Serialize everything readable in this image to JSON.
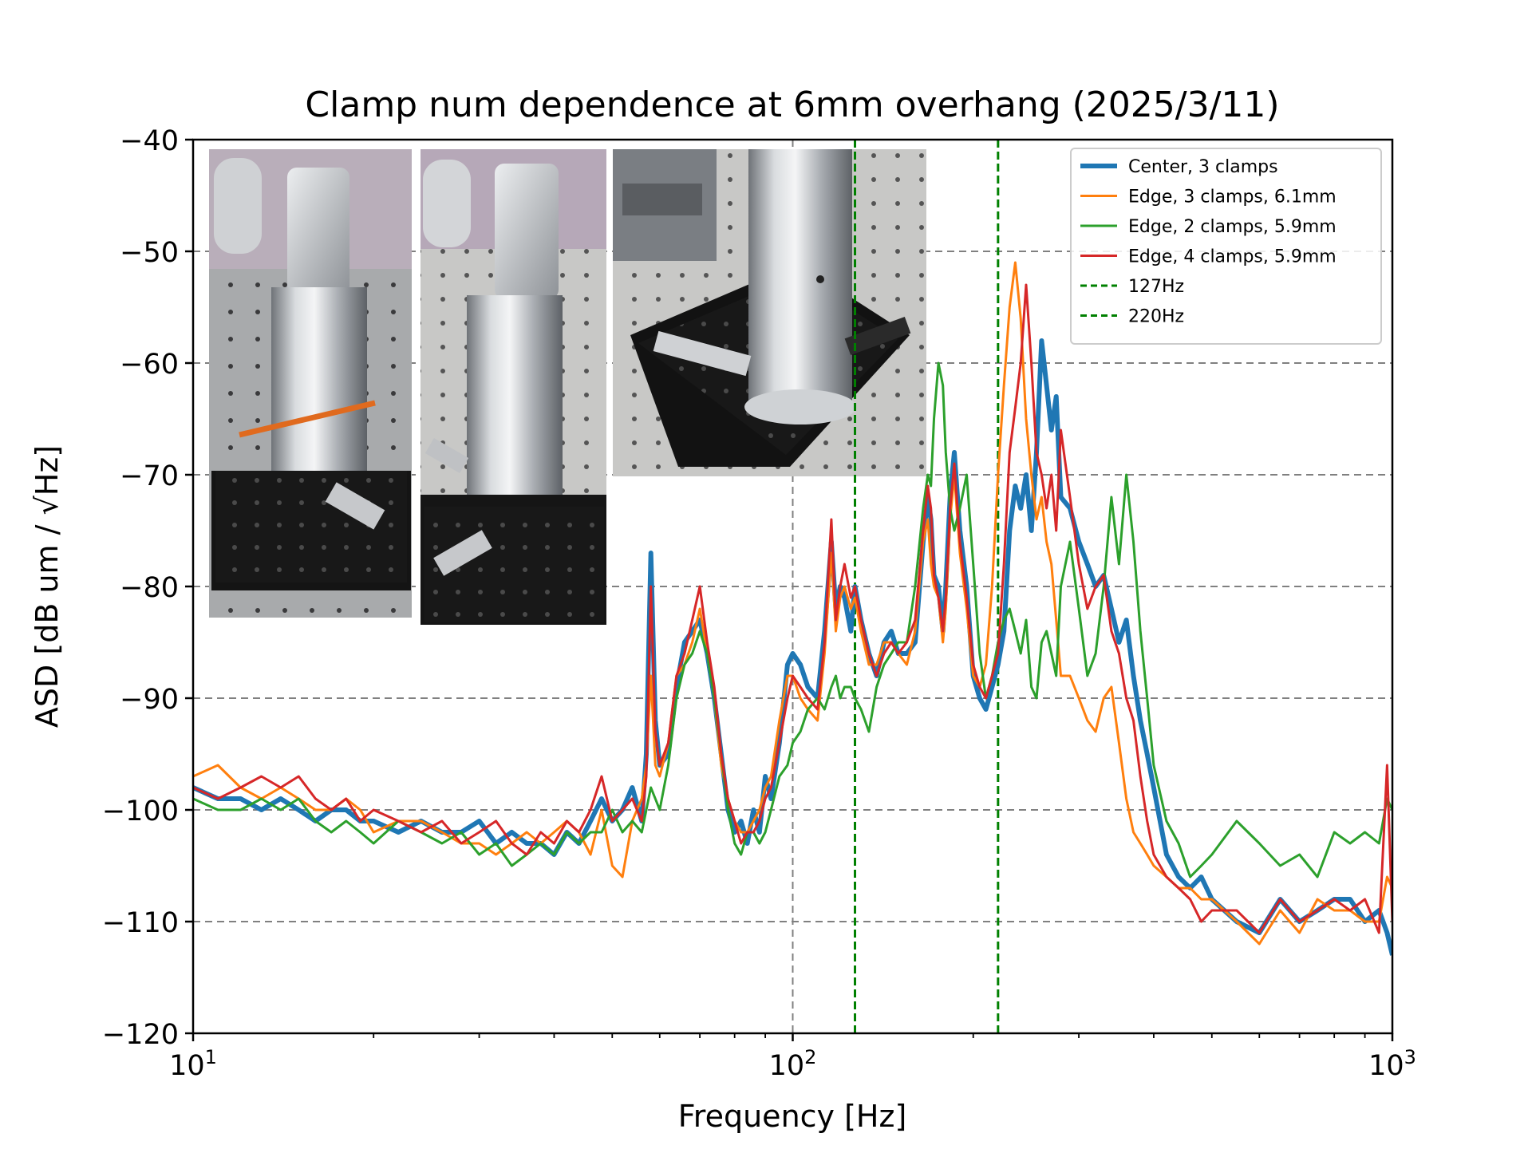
{
  "colors": {
    "center_3": "#1f77b4",
    "edge_3": "#ff7f0e",
    "edge_2": "#2ca02c",
    "edge_4": "#d62728",
    "vline": "#008000",
    "grid": "#808080"
  },
  "chart_data": {
    "type": "line",
    "title": "Clamp num dependence at 6mm overhang (2025/3/11)",
    "xlabel": "Frequency [Hz]",
    "ylabel": "ASD [dB um / √Hz]",
    "xscale": "log",
    "xlim": [
      10,
      1000
    ],
    "ylim": [
      -120,
      -40
    ],
    "xticks": [
      {
        "value": 10,
        "base": "10",
        "exp": "1"
      },
      {
        "value": 100,
        "base": "10",
        "exp": "2"
      },
      {
        "value": 1000,
        "base": "10",
        "exp": "3"
      }
    ],
    "yticks": [
      -40,
      -50,
      -60,
      -70,
      -80,
      -90,
      -100,
      -110,
      -120
    ],
    "ytick_labels": [
      "−40",
      "−50",
      "−60",
      "−70",
      "−80",
      "−90",
      "−100",
      "−110",
      "−120"
    ],
    "grid": "dashed, major ticks",
    "legend_position": "top-right",
    "vlines": [
      {
        "name": "127Hz",
        "x": 127,
        "style": "dashed"
      },
      {
        "name": "220Hz",
        "x": 220,
        "style": "dashed"
      }
    ],
    "inset_photos": 3,
    "series": [
      {
        "name": "Center, 3 clamps",
        "color_key": "center_3",
        "x": [
          10,
          11,
          12,
          13,
          14,
          15,
          16,
          17,
          18,
          19,
          20,
          22,
          24,
          26,
          28,
          30,
          32,
          34,
          36,
          38,
          40,
          42,
          44,
          46,
          48,
          50,
          52,
          54,
          56,
          57,
          58,
          59,
          60,
          62,
          64,
          66,
          68,
          70,
          72,
          74,
          76,
          78,
          80,
          82,
          84,
          86,
          88,
          90,
          92,
          95,
          98,
          100,
          103,
          106,
          110,
          113,
          116,
          118,
          120,
          122,
          125,
          127,
          130,
          134,
          138,
          142,
          146,
          150,
          155,
          160,
          165,
          168,
          170,
          172,
          175,
          178,
          180,
          183,
          186,
          190,
          195,
          200,
          205,
          210,
          215,
          220,
          225,
          230,
          235,
          240,
          245,
          250,
          255,
          260,
          265,
          270,
          275,
          280,
          290,
          300,
          310,
          320,
          330,
          340,
          350,
          360,
          370,
          380,
          390,
          400,
          420,
          440,
          460,
          480,
          500,
          550,
          600,
          650,
          700,
          750,
          800,
          850,
          900,
          950,
          980,
          1000
        ],
        "y": [
          -98,
          -99,
          -99,
          -100,
          -99,
          -100,
          -101,
          -100,
          -100,
          -101,
          -101,
          -102,
          -101,
          -102,
          -102,
          -101,
          -103,
          -102,
          -103,
          -103,
          -104,
          -102,
          -103,
          -101,
          -99,
          -101,
          -100,
          -98,
          -101,
          -95,
          -77,
          -92,
          -96,
          -95,
          -89,
          -85,
          -84,
          -83,
          -86,
          -90,
          -95,
          -100,
          -102,
          -101,
          -103,
          -100,
          -102,
          -97,
          -99,
          -94,
          -87,
          -86,
          -87,
          -89,
          -90,
          -84,
          -76,
          -82,
          -80,
          -81,
          -84,
          -80,
          -83,
          -86,
          -88,
          -85,
          -84,
          -86,
          -86,
          -85,
          -76,
          -72,
          -74,
          -79,
          -80,
          -84,
          -80,
          -72,
          -68,
          -75,
          -80,
          -88,
          -90,
          -91,
          -89,
          -87,
          -84,
          -75,
          -71,
          -73,
          -70,
          -75,
          -68,
          -58,
          -62,
          -66,
          -63,
          -72,
          -73,
          -76,
          -78,
          -80,
          -79,
          -82,
          -85,
          -83,
          -88,
          -92,
          -95,
          -98,
          -104,
          -106,
          -107,
          -106,
          -108,
          -110,
          -111,
          -108,
          -110,
          -109,
          -108,
          -108,
          -110,
          -109,
          -111,
          -113
        ]
      },
      {
        "name": "Edge, 3 clamps, 6.1mm",
        "color_key": "edge_3",
        "x": [
          10,
          11,
          12,
          13,
          14,
          15,
          16,
          17,
          18,
          19,
          20,
          22,
          24,
          26,
          28,
          30,
          32,
          34,
          36,
          38,
          40,
          42,
          44,
          46,
          48,
          50,
          52,
          54,
          56,
          57,
          58,
          59,
          60,
          62,
          64,
          66,
          68,
          70,
          72,
          74,
          76,
          78,
          80,
          82,
          84,
          86,
          88,
          90,
          92,
          95,
          98,
          100,
          103,
          106,
          110,
          113,
          116,
          118,
          120,
          122,
          125,
          127,
          130,
          134,
          138,
          142,
          146,
          150,
          155,
          160,
          165,
          168,
          170,
          172,
          175,
          178,
          180,
          183,
          186,
          190,
          195,
          200,
          205,
          210,
          215,
          220,
          225,
          230,
          235,
          240,
          245,
          250,
          255,
          260,
          265,
          270,
          275,
          280,
          290,
          300,
          310,
          320,
          330,
          340,
          350,
          360,
          370,
          380,
          390,
          400,
          420,
          440,
          460,
          480,
          500,
          550,
          600,
          650,
          700,
          750,
          800,
          850,
          900,
          950,
          980,
          1000
        ],
        "y": [
          -97,
          -96,
          -98,
          -99,
          -98,
          -99,
          -100,
          -100,
          -99,
          -100,
          -102,
          -101,
          -101,
          -102,
          -103,
          -103,
          -104,
          -103,
          -102,
          -103,
          -102,
          -101,
          -102,
          -104,
          -100,
          -105,
          -106,
          -101,
          -99,
          -96,
          -88,
          -96,
          -97,
          -94,
          -88,
          -87,
          -85,
          -82,
          -86,
          -90,
          -96,
          -99,
          -101,
          -102,
          -102,
          -101,
          -100,
          -98,
          -97,
          -92,
          -88,
          -88,
          -90,
          -91,
          -92,
          -86,
          -77,
          -84,
          -81,
          -80,
          -82,
          -81,
          -84,
          -87,
          -87,
          -85,
          -85,
          -86,
          -87,
          -84,
          -76,
          -74,
          -78,
          -80,
          -81,
          -85,
          -82,
          -74,
          -70,
          -77,
          -82,
          -88,
          -89,
          -87,
          -80,
          -70,
          -62,
          -55,
          -51,
          -56,
          -65,
          -70,
          -74,
          -72,
          -76,
          -78,
          -83,
          -88,
          -88,
          -90,
          -92,
          -93,
          -90,
          -89,
          -94,
          -99,
          -102,
          -103,
          -104,
          -105,
          -106,
          -107,
          -107,
          -108,
          -108,
          -110,
          -112,
          -109,
          -111,
          -108,
          -109,
          -109,
          -110,
          -110,
          -106,
          -107
        ]
      },
      {
        "name": "Edge, 2 clamps, 5.9mm",
        "color_key": "edge_2",
        "x": [
          10,
          11,
          12,
          13,
          14,
          15,
          16,
          17,
          18,
          19,
          20,
          22,
          24,
          26,
          28,
          30,
          32,
          34,
          36,
          38,
          40,
          42,
          44,
          46,
          48,
          50,
          52,
          54,
          56,
          57,
          58,
          59,
          60,
          62,
          64,
          66,
          68,
          70,
          72,
          74,
          76,
          78,
          80,
          82,
          84,
          86,
          88,
          90,
          92,
          95,
          98,
          100,
          103,
          106,
          110,
          113,
          116,
          118,
          120,
          122,
          125,
          127,
          130,
          134,
          138,
          142,
          146,
          150,
          155,
          160,
          165,
          168,
          170,
          172,
          175,
          178,
          180,
          183,
          186,
          190,
          195,
          200,
          205,
          210,
          215,
          220,
          225,
          230,
          235,
          240,
          245,
          250,
          255,
          260,
          265,
          270,
          275,
          280,
          290,
          300,
          310,
          320,
          330,
          340,
          350,
          360,
          370,
          380,
          390,
          400,
          420,
          440,
          460,
          480,
          500,
          550,
          600,
          650,
          700,
          750,
          800,
          850,
          900,
          950,
          980,
          1000
        ],
        "y": [
          -99,
          -100,
          -100,
          -99,
          -100,
          -99,
          -101,
          -102,
          -101,
          -102,
          -103,
          -101,
          -102,
          -103,
          -102,
          -104,
          -103,
          -105,
          -104,
          -103,
          -104,
          -102,
          -103,
          -102,
          -102,
          -100,
          -102,
          -101,
          -102,
          -100,
          -98,
          -99,
          -100,
          -96,
          -90,
          -87,
          -86,
          -84,
          -86,
          -90,
          -95,
          -100,
          -103,
          -104,
          -102,
          -102,
          -103,
          -102,
          -100,
          -97,
          -96,
          -94,
          -93,
          -91,
          -90,
          -91,
          -89,
          -88,
          -90,
          -89,
          -89,
          -90,
          -91,
          -93,
          -89,
          -87,
          -86,
          -85,
          -85,
          -80,
          -73,
          -70,
          -71,
          -65,
          -60,
          -62,
          -68,
          -73,
          -75,
          -73,
          -70,
          -78,
          -86,
          -90,
          -88,
          -85,
          -83,
          -82,
          -84,
          -86,
          -83,
          -89,
          -90,
          -85,
          -84,
          -86,
          -88,
          -80,
          -76,
          -82,
          -88,
          -86,
          -80,
          -72,
          -78,
          -70,
          -76,
          -84,
          -90,
          -96,
          -101,
          -103,
          -106,
          -105,
          -104,
          -101,
          -103,
          -105,
          -104,
          -106,
          -102,
          -103,
          -102,
          -103,
          -99,
          -100
        ]
      },
      {
        "name": "Edge, 4 clamps, 5.9mm",
        "color_key": "edge_4",
        "x": [
          10,
          11,
          12,
          13,
          14,
          15,
          16,
          17,
          18,
          19,
          20,
          22,
          24,
          26,
          28,
          30,
          32,
          34,
          36,
          38,
          40,
          42,
          44,
          46,
          48,
          50,
          52,
          54,
          56,
          57,
          58,
          59,
          60,
          62,
          64,
          66,
          68,
          70,
          72,
          74,
          76,
          78,
          80,
          82,
          84,
          86,
          88,
          90,
          92,
          95,
          98,
          100,
          103,
          106,
          110,
          113,
          116,
          118,
          120,
          122,
          125,
          127,
          130,
          134,
          138,
          142,
          146,
          150,
          155,
          160,
          165,
          168,
          170,
          172,
          175,
          178,
          180,
          183,
          186,
          190,
          195,
          200,
          205,
          210,
          215,
          220,
          225,
          230,
          235,
          240,
          245,
          250,
          255,
          260,
          265,
          270,
          275,
          280,
          290,
          300,
          310,
          320,
          330,
          340,
          350,
          360,
          370,
          380,
          390,
          400,
          420,
          440,
          460,
          480,
          500,
          550,
          600,
          650,
          700,
          750,
          800,
          850,
          900,
          950,
          980,
          1000
        ],
        "y": [
          -98,
          -99,
          -98,
          -97,
          -98,
          -97,
          -99,
          -100,
          -99,
          -101,
          -100,
          -101,
          -102,
          -101,
          -103,
          -102,
          -101,
          -103,
          -104,
          -102,
          -103,
          -101,
          -102,
          -100,
          -97,
          -101,
          -100,
          -99,
          -101,
          -97,
          -80,
          -93,
          -96,
          -94,
          -88,
          -86,
          -83,
          -80,
          -85,
          -89,
          -95,
          -99,
          -101,
          -103,
          -102,
          -102,
          -101,
          -99,
          -98,
          -94,
          -90,
          -88,
          -89,
          -90,
          -91,
          -85,
          -74,
          -83,
          -80,
          -78,
          -81,
          -80,
          -83,
          -86,
          -88,
          -86,
          -85,
          -86,
          -85,
          -83,
          -75,
          -71,
          -73,
          -79,
          -81,
          -84,
          -81,
          -73,
          -69,
          -76,
          -81,
          -87,
          -89,
          -90,
          -88,
          -86,
          -78,
          -68,
          -64,
          -60,
          -53,
          -60,
          -68,
          -70,
          -73,
          -70,
          -75,
          -66,
          -72,
          -78,
          -82,
          -80,
          -79,
          -84,
          -86,
          -90,
          -92,
          -97,
          -101,
          -104,
          -106,
          -107,
          -108,
          -110,
          -109,
          -109,
          -111,
          -108,
          -110,
          -109,
          -108,
          -109,
          -108,
          -111,
          -96,
          -110
        ]
      }
    ]
  }
}
